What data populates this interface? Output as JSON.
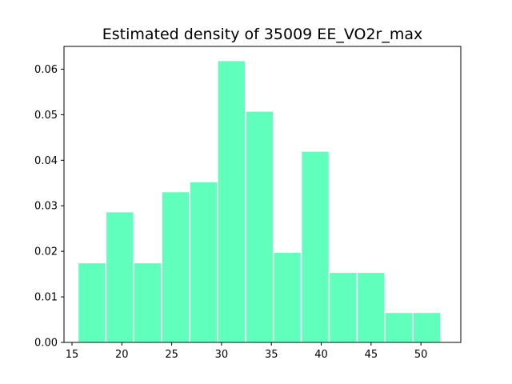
{
  "chart_data": {
    "type": "bar",
    "title": "Estimated density of 35009 EE_VO2r_max",
    "xlabel": "",
    "ylabel": "",
    "xlim": [
      14.2,
      54.0
    ],
    "ylim": [
      0,
      0.065
    ],
    "x_ticks": [
      15,
      20,
      25,
      30,
      35,
      40,
      45,
      50
    ],
    "y_ticks": [
      0.0,
      0.01,
      0.02,
      0.03,
      0.04,
      0.05,
      0.06
    ],
    "x_tick_labels": [
      "15",
      "20",
      "25",
      "30",
      "35",
      "40",
      "45",
      "50"
    ],
    "y_tick_labels": [
      "0.00",
      "0.01",
      "0.02",
      "0.03",
      "0.04",
      "0.05",
      "0.06"
    ],
    "bin_edges": [
      15.6,
      18.4,
      21.2,
      24.0,
      26.8,
      29.6,
      32.4,
      35.2,
      38.0,
      40.8,
      43.6,
      46.4,
      49.2,
      52.0
    ],
    "values": [
      0.0175,
      0.0287,
      0.0175,
      0.0331,
      0.0353,
      0.0619,
      0.0508,
      0.0198,
      0.042,
      0.0154,
      0.0154,
      0.0066,
      0.0066
    ],
    "bar_color": "#61ffbc",
    "grid": false,
    "legend": "none"
  }
}
